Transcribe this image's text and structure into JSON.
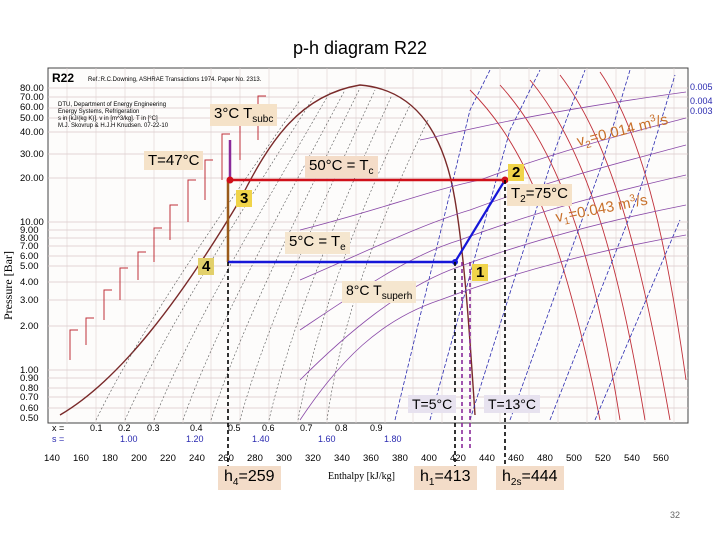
{
  "title": "p-h diagram R22",
  "chart_header": {
    "refrigerant": "R22",
    "reference": "Ref.:R.C.Downing, ASHRAE Transactions 1974. Paper No. 2313.",
    "dept": "DTU, Department of Energy Engineering",
    "section": "Energy Systems, Refrigeration",
    "units": "s in [kJ/(kg K)]. v in [m^3/kg]. T in [°C]",
    "authors": "M.J. Skovrup & H.J.H Knudsen. 07-22-10"
  },
  "axes": {
    "ylabel": "Pressure [Bar]",
    "xlabel": "Enthalpy [kJ/kg]",
    "yticks": [
      "80.00",
      "70.00",
      "60.00",
      "50.00",
      "40.00",
      "30.00",
      "20.00",
      "10.00",
      "9.00",
      "8.00",
      "7.00",
      "6.00",
      "5.00",
      "4.00",
      "3.00",
      "2.00",
      "1.00",
      "0.90",
      "0.80",
      "0.70",
      "0.60",
      "0.50"
    ],
    "xticks": [
      "140",
      "160",
      "180",
      "200",
      "220",
      "240",
      "260",
      "280",
      "300",
      "320",
      "340",
      "360",
      "380",
      "400",
      "420",
      "440",
      "460",
      "480",
      "500",
      "520",
      "540",
      "560"
    ],
    "x_quality_label": "x =",
    "x_quality": [
      "0.1",
      "0.2",
      "0.3",
      "0.4",
      "0.5",
      "0.6",
      "0.7",
      "0.8",
      "0.9"
    ],
    "s_label": "s =",
    "s_values": [
      "1.00",
      "1.20",
      "1.40",
      "1.60",
      "1.80"
    ]
  },
  "annotations": {
    "tsubc": "3°C T",
    "tsubc_sub": "subc",
    "t47": "T=47°C",
    "tc": "50°C = T",
    "tc_sub": "c",
    "te": "5°C = T",
    "te_sub": "e",
    "tsuperh": "8°C T",
    "tsuperh_sub": "superh",
    "t2": "T",
    "t2_sub": "2",
    "t2_val": "=75°C",
    "v2": "v",
    "v2_sub": "2",
    "v2_val": "=0.014 m",
    "v2_sup": "3",
    "v2_unit": "/s",
    "v1": "v",
    "v1_sub": "1",
    "v1_val": "=0.043 m",
    "v1_sup": "3",
    "v1_unit": "/s",
    "t5": "T=5°C",
    "t13": "T=13°C",
    "h4": "h",
    "h4_sub": "4",
    "h4_val": "=259",
    "h1": "h",
    "h1_sub": "1",
    "h1_val": "=413",
    "h2s": "h",
    "h2s_sub": "2s",
    "h2s_val": "=444",
    "page": "32"
  },
  "points": [
    "1",
    "2",
    "3",
    "4"
  ],
  "colors": {
    "red_line": "#d0101a",
    "blue_line": "#1616d8",
    "brown_line": "#9a5a1a",
    "purple_line": "#5a2a9a",
    "grid": "#c8b8b8"
  }
}
